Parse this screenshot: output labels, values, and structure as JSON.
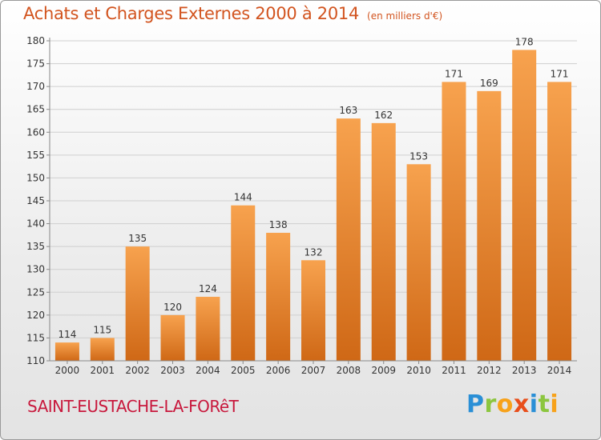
{
  "title": "Achats et Charges Externes 2000 à 2014",
  "subtitle": "(en milliers d'€)",
  "city": "SAINT-EUSTACHE-LA-FORêT",
  "logo": {
    "letters": [
      "P",
      "r",
      "o",
      "x",
      "i",
      "t",
      "i"
    ],
    "colors": [
      "#2a8fd6",
      "#8cc63f",
      "#f7a21b",
      "#e84e1b",
      "#2a8fd6",
      "#8cc63f",
      "#f7a21b"
    ]
  },
  "colors": {
    "title": "#d2541f",
    "bar_top": "#f7a24e",
    "bar_bottom": "#cf6816",
    "grid": "#cfcfcf",
    "city": "#c8183c"
  },
  "chart_data": {
    "type": "bar",
    "categories": [
      "2000",
      "2001",
      "2002",
      "2003",
      "2004",
      "2005",
      "2006",
      "2007",
      "2008",
      "2009",
      "2010",
      "2011",
      "2012",
      "2013",
      "2014"
    ],
    "values": [
      114,
      115,
      135,
      120,
      124,
      144,
      138,
      132,
      163,
      162,
      153,
      171,
      169,
      178,
      171
    ],
    "value_labels": [
      "114",
      "115",
      "135",
      "120",
      "124",
      "144",
      "138",
      "132",
      "163",
      "162",
      "153",
      "171",
      "169",
      "178",
      "171"
    ],
    "ylim": [
      110,
      180
    ],
    "ystep": 5,
    "yticks": [
      "110",
      "115",
      "120",
      "125",
      "130",
      "135",
      "140",
      "145",
      "150",
      "155",
      "160",
      "165",
      "170",
      "175",
      "180"
    ],
    "grid": true
  }
}
